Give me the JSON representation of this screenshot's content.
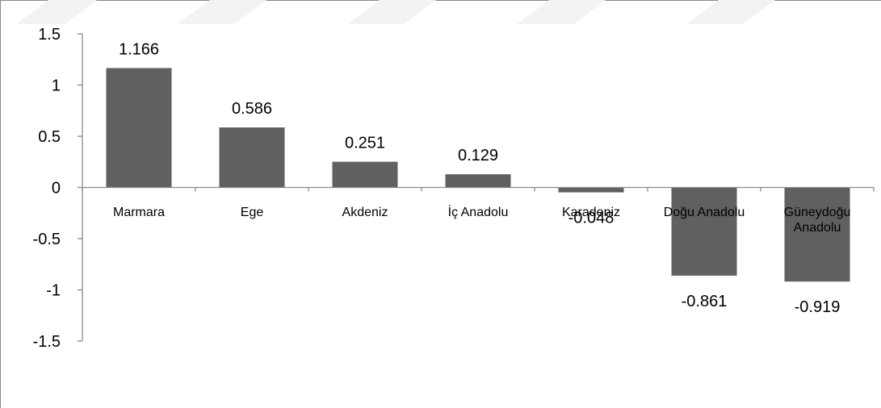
{
  "chart_data": {
    "type": "bar",
    "title": "",
    "xlabel": "",
    "ylabel": "",
    "categories": [
      "Marmara",
      "Ege",
      "Akdeniz",
      "İç Anadolu",
      "Karadeniz",
      "Doğu Anadolu",
      "Güneydoğu Anadolu"
    ],
    "category_lines": [
      [
        "Marmara"
      ],
      [
        "Ege"
      ],
      [
        "Akdeniz"
      ],
      [
        "İç Anadolu"
      ],
      [
        "Karadeniz"
      ],
      [
        "Doğu Anadolu"
      ],
      [
        "Güneydoğu",
        "Anadolu"
      ]
    ],
    "values": [
      1.166,
      0.586,
      0.251,
      0.129,
      -0.048,
      -0.861,
      -0.919
    ],
    "value_labels": [
      "1.166",
      "0.586",
      "0.251",
      "0.129",
      "-0.048",
      "-0.861",
      "-0.919"
    ],
    "ylim": [
      -1.5,
      1.5
    ],
    "yticks": [
      1.5,
      1,
      0.5,
      0,
      -0.5,
      -1,
      -1.5
    ],
    "ytick_labels": [
      "1.5",
      "1",
      "0.5",
      "0",
      "-0.5",
      "-1",
      "-1.5"
    ],
    "grid": false,
    "legend": "none",
    "bar_color": "#606060",
    "axis_color": "#8a8a8a"
  }
}
